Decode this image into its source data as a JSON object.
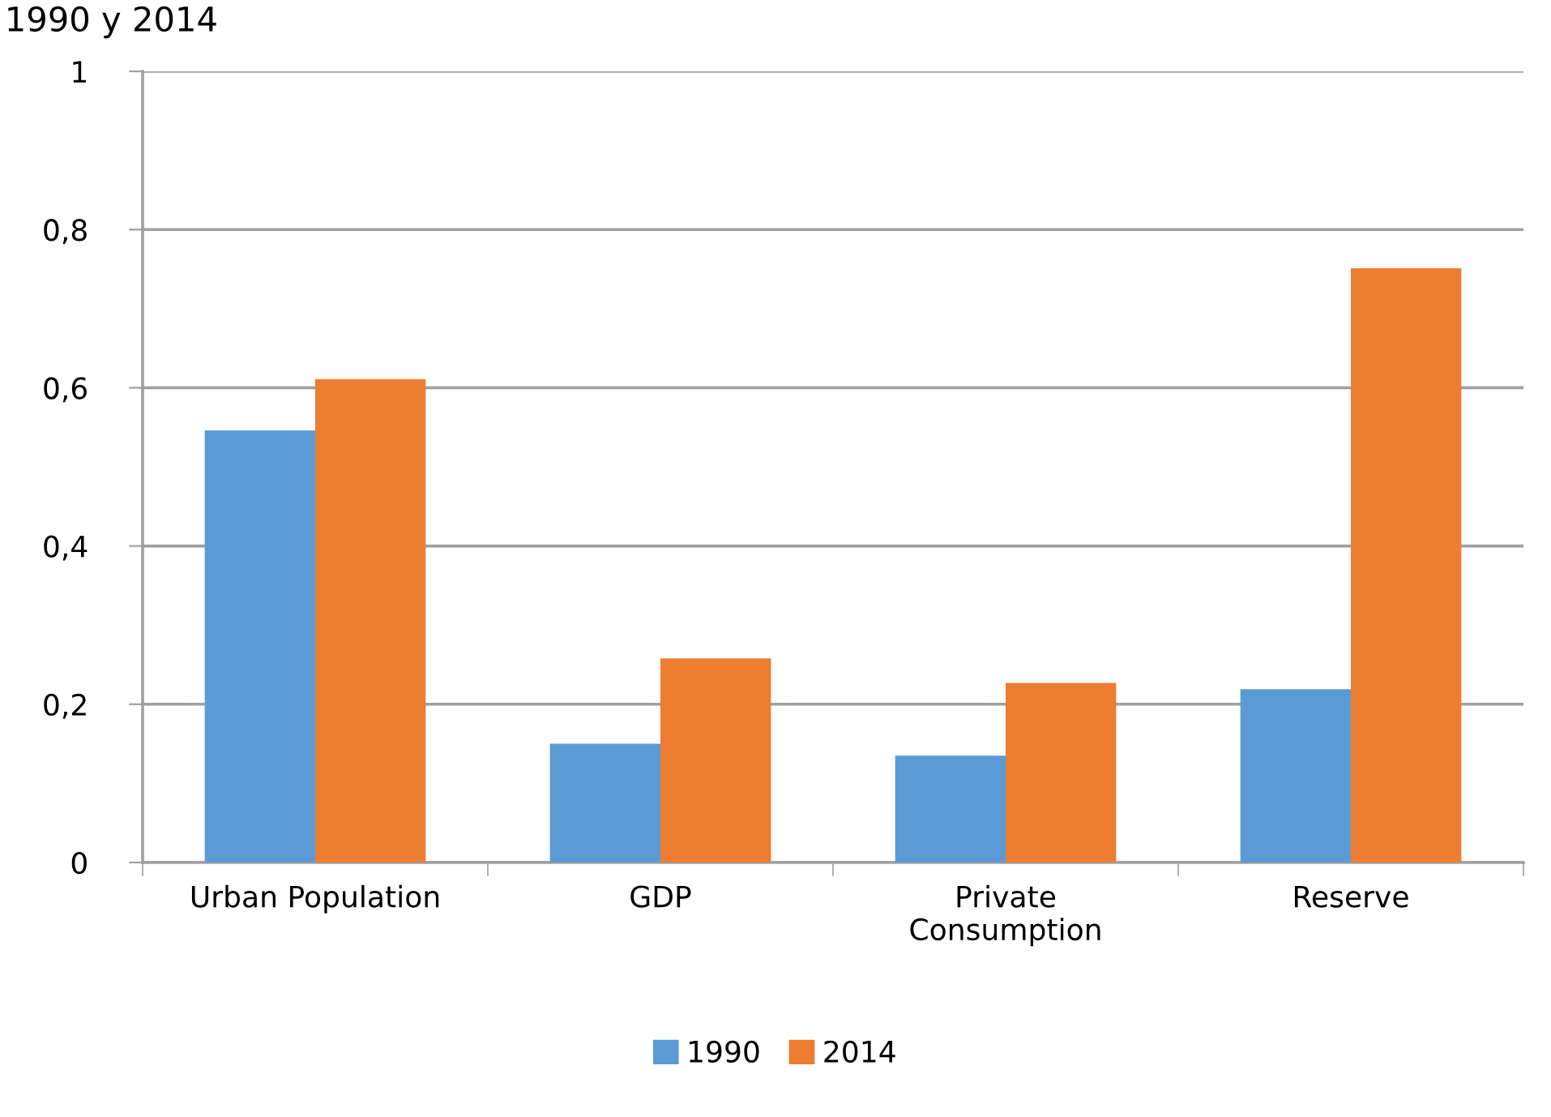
{
  "chart_data": {
    "type": "bar",
    "title": "1990 y 2014",
    "categories": [
      "Urban Population",
      "GDP",
      "Private\nConsumption",
      "Reserve"
    ],
    "series": [
      {
        "name": "1990",
        "color": "#5b9bd5",
        "values": [
          0.546,
          0.15,
          0.135,
          0.219
        ]
      },
      {
        "name": "2014",
        "color": "#ed7d31",
        "values": [
          0.611,
          0.258,
          0.227,
          0.751
        ]
      }
    ],
    "ylim": [
      0,
      1
    ],
    "yticks": [
      0,
      {
        "value": 0.2,
        "label": "0,2"
      },
      {
        "value": 0.4,
        "label": "0,4"
      },
      {
        "value": 0.6,
        "label": "0,6"
      },
      {
        "value": 0.8,
        "label": "0,8"
      },
      1
    ],
    "grid": "y",
    "legend": "bottom"
  }
}
